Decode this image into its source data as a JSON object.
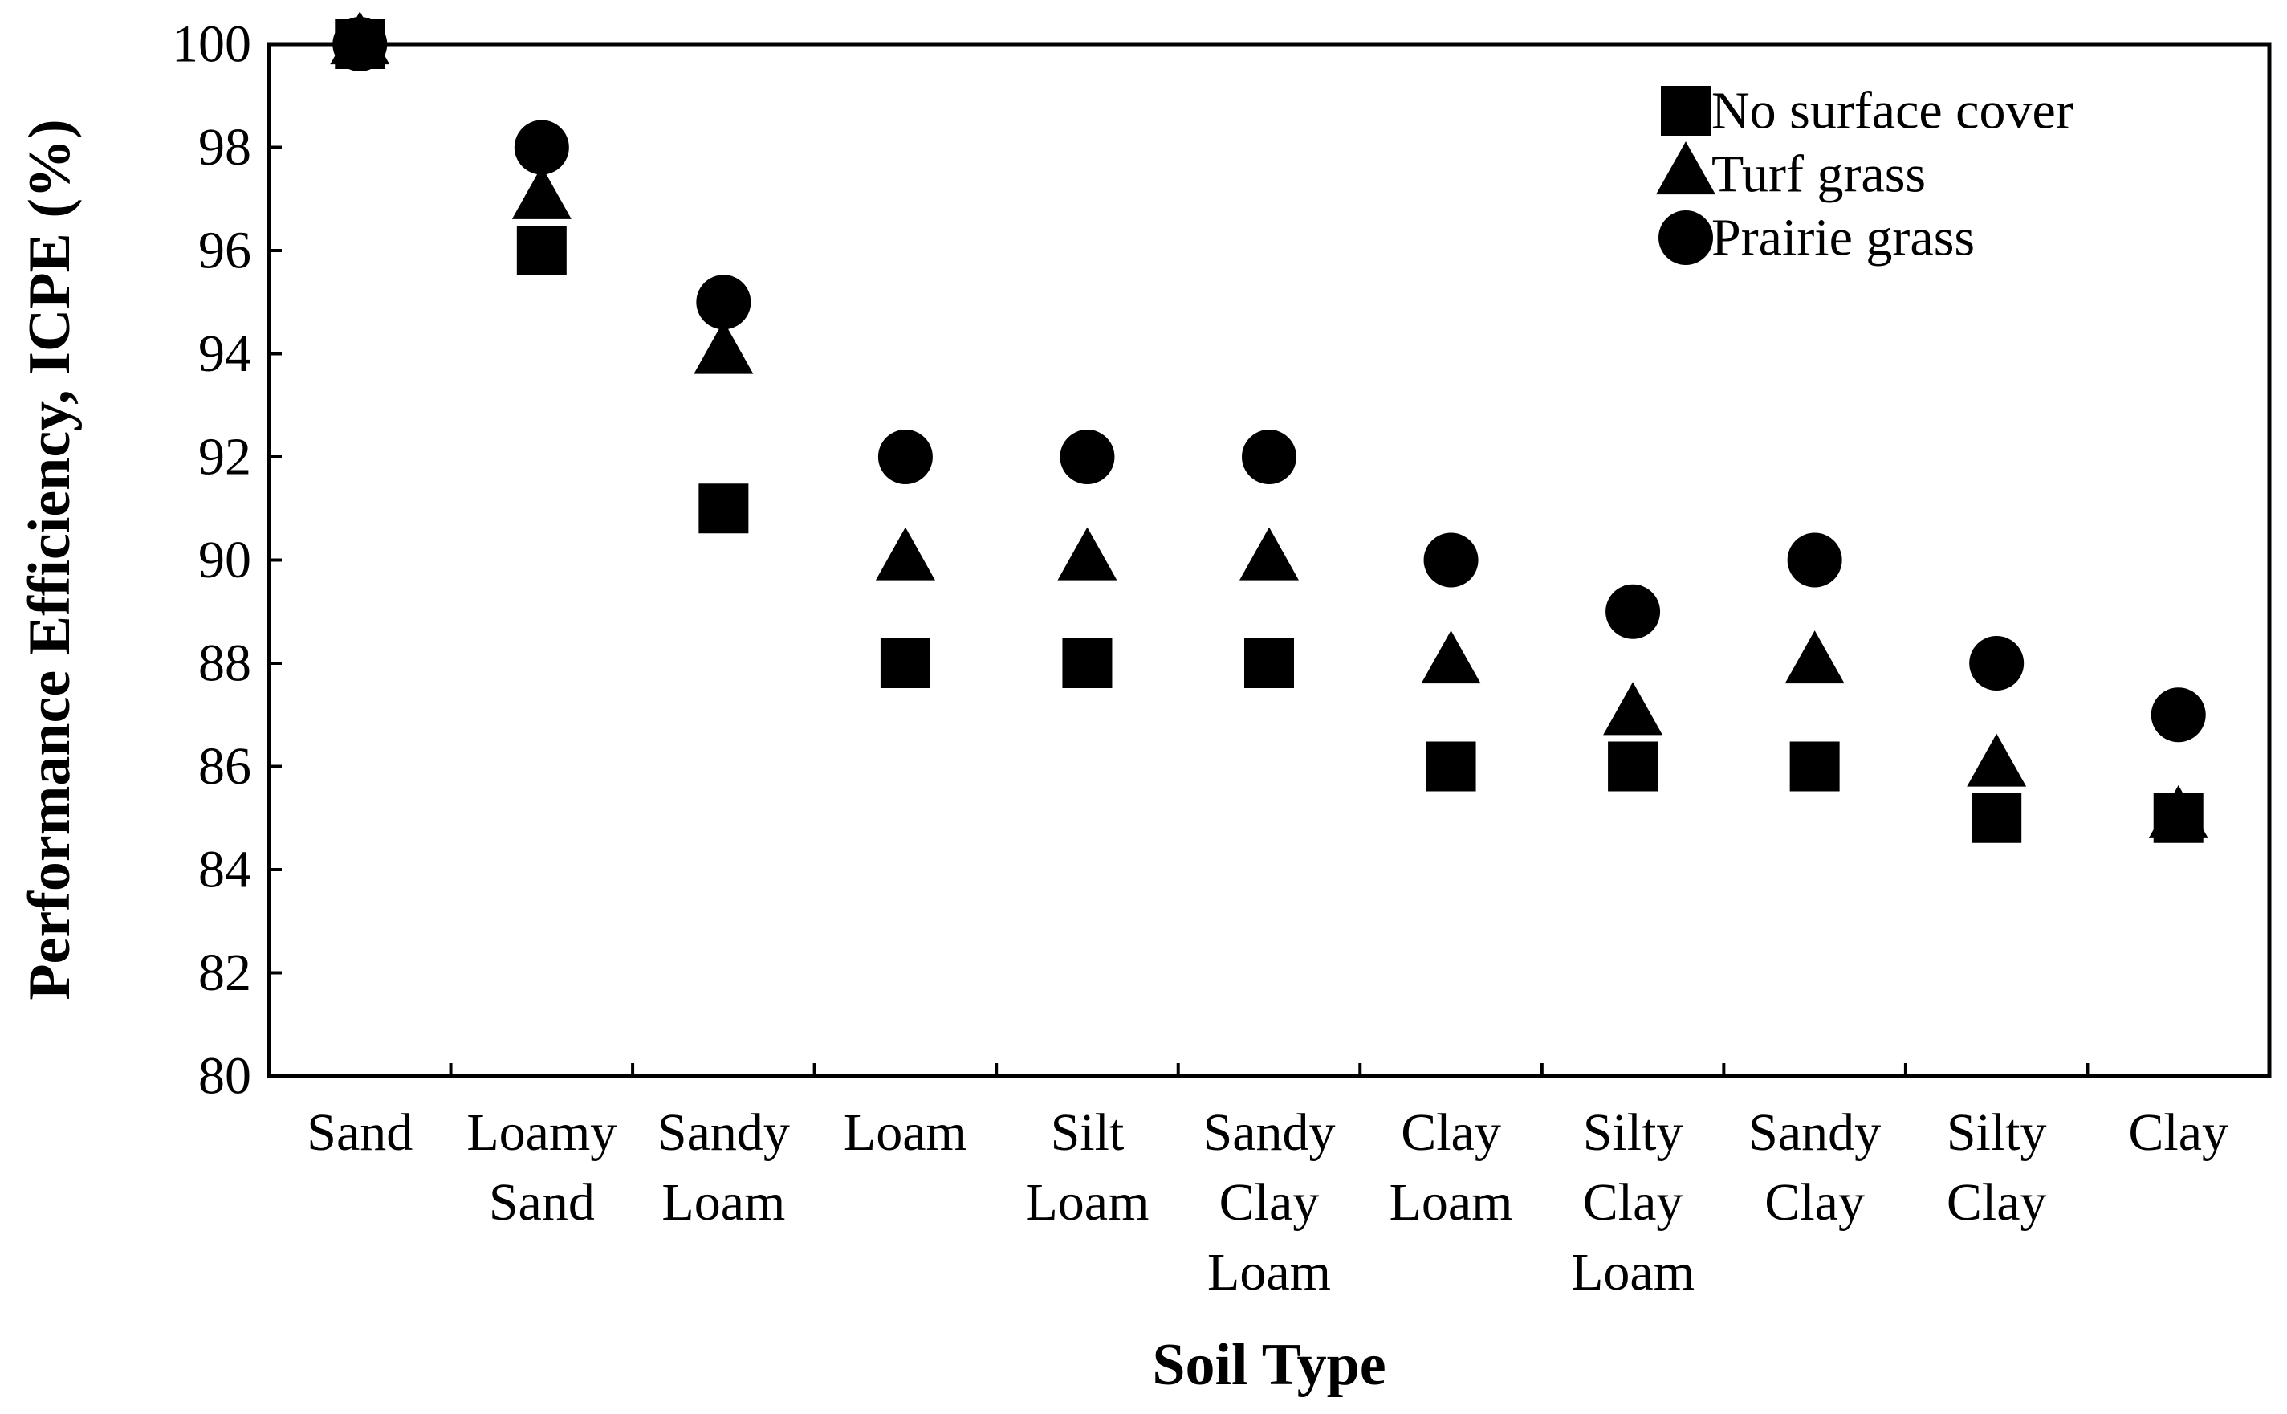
{
  "chart_data": {
    "type": "scatter",
    "title": "",
    "xlabel": "Soil Type",
    "ylabel": "Performance Efficiency, ICPE  (%)",
    "ylim": [
      80,
      100
    ],
    "yticks": [
      80,
      82,
      84,
      86,
      88,
      90,
      92,
      94,
      96,
      98,
      100
    ],
    "grid": false,
    "legend_position": "top-right",
    "categories": [
      [
        "Sand"
      ],
      [
        "Loamy",
        "Sand"
      ],
      [
        "Sandy",
        "Loam"
      ],
      [
        "Loam"
      ],
      [
        "Silt",
        "Loam"
      ],
      [
        "Sandy",
        "Clay",
        "Loam"
      ],
      [
        "Clay",
        "Loam"
      ],
      [
        "Silty",
        "Clay",
        "Loam"
      ],
      [
        "Sandy",
        "Clay"
      ],
      [
        "Silty",
        "Clay"
      ],
      [
        "Clay"
      ]
    ],
    "series": [
      {
        "name": "No surface cover",
        "marker": "square",
        "color": "#000000",
        "values": [
          100,
          96,
          91,
          88,
          88,
          88,
          86,
          86,
          86,
          85,
          85
        ]
      },
      {
        "name": "Turf grass",
        "marker": "triangle",
        "color": "#000000",
        "values": [
          100,
          97,
          94,
          90,
          90,
          90,
          88,
          87,
          88,
          86,
          85
        ]
      },
      {
        "name": "Prairie grass",
        "marker": "circle",
        "color": "#000000",
        "values": [
          100,
          98,
          95,
          92,
          92,
          92,
          90,
          89,
          90,
          88,
          87
        ]
      }
    ]
  }
}
